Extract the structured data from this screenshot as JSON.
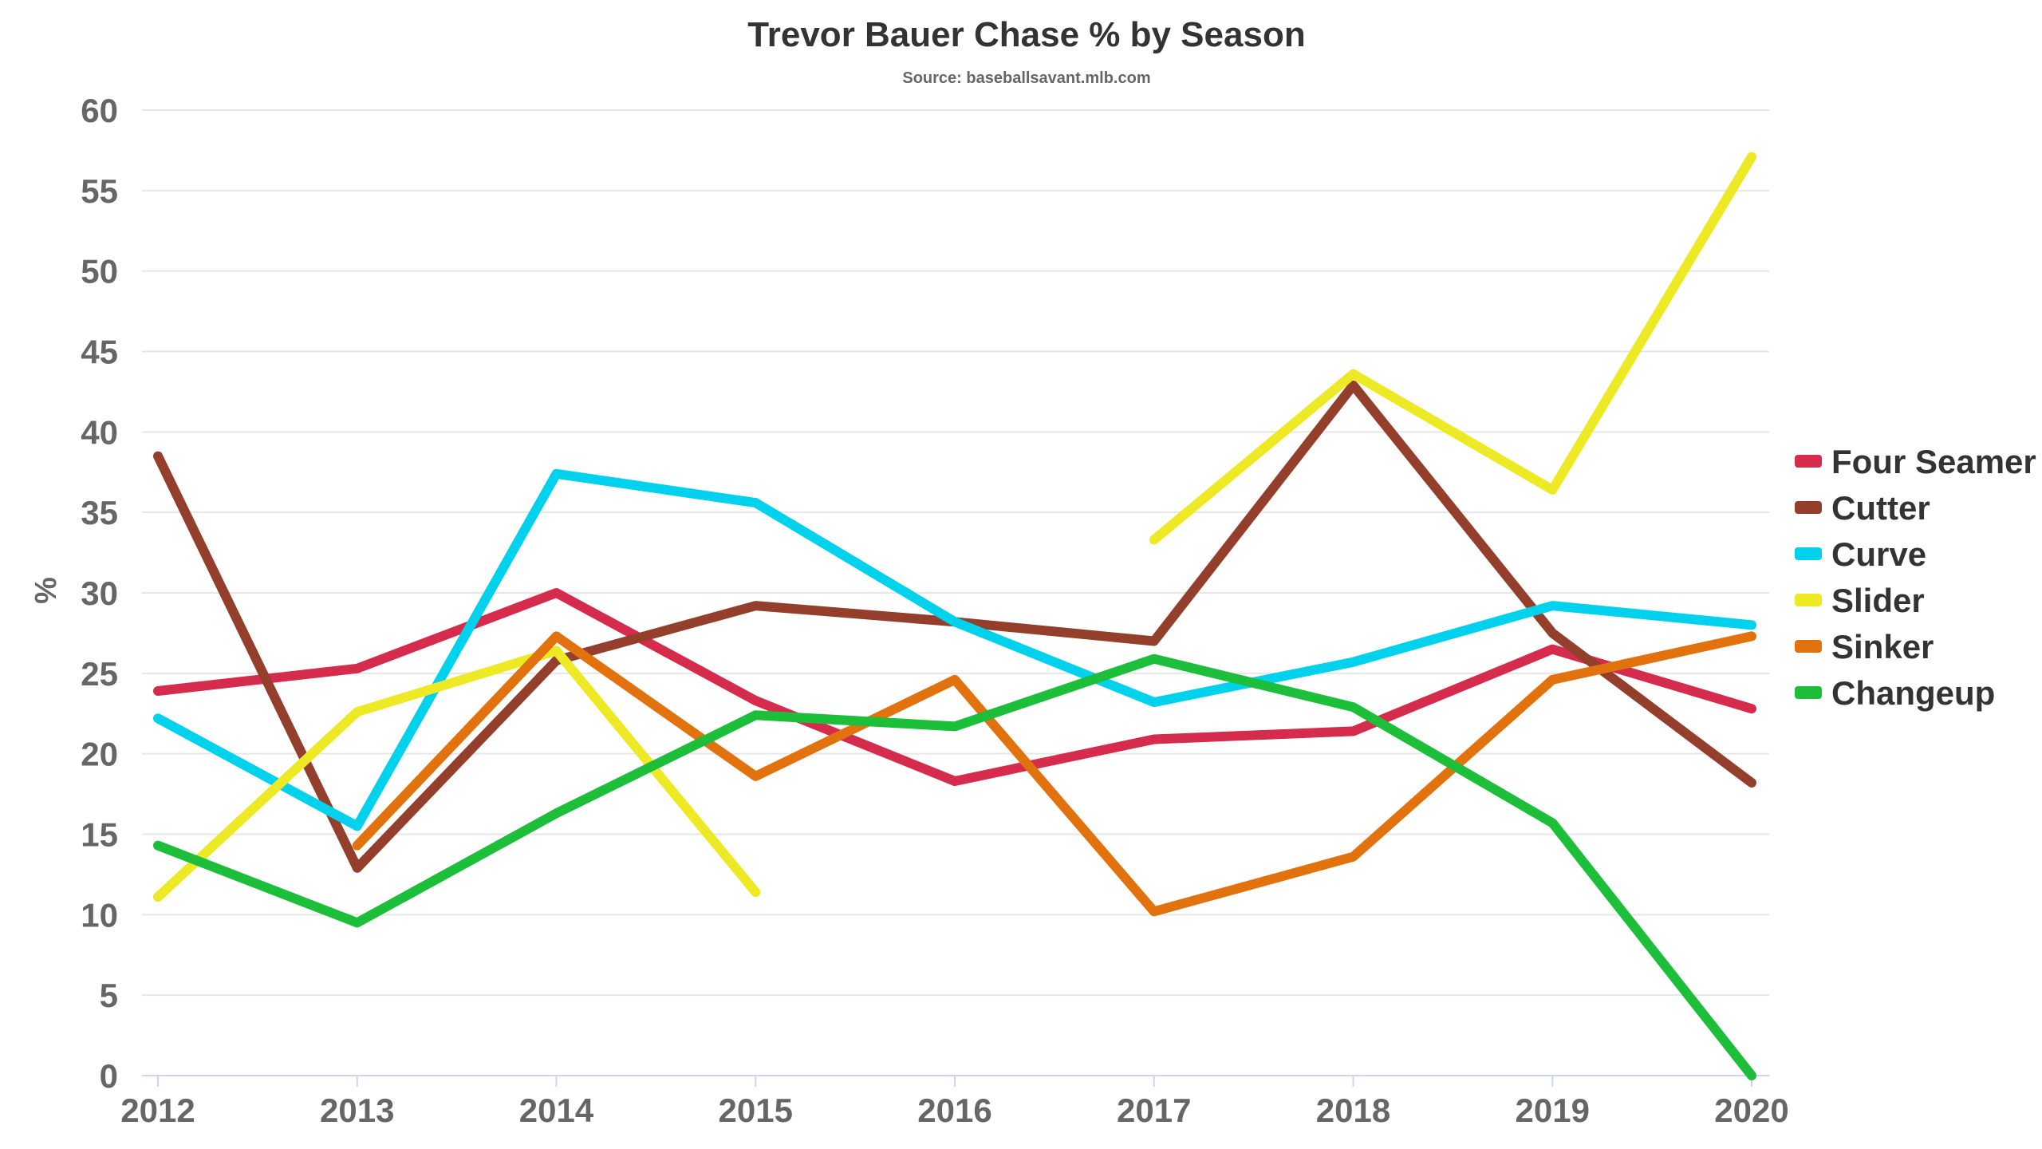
{
  "chart_data": {
    "type": "line",
    "title": "Trevor Bauer Chase % by Season",
    "subtitle": "Source: baseballsavant.mlb.com",
    "xlabel": "",
    "ylabel": "%",
    "x": [
      "2012",
      "2013",
      "2014",
      "2015",
      "2016",
      "2017",
      "2018",
      "2019",
      "2020"
    ],
    "ylim": [
      0,
      60
    ],
    "yticks": [
      0,
      5,
      10,
      15,
      20,
      25,
      30,
      35,
      40,
      45,
      50,
      55,
      60
    ],
    "grid": true,
    "legend_position": "right",
    "series": [
      {
        "name": "Four Seamer",
        "color": "#d52b4c",
        "values": [
          23.9,
          25.3,
          30.0,
          23.3,
          18.3,
          20.9,
          21.4,
          26.5,
          22.8
        ]
      },
      {
        "name": "Cutter",
        "color": "#933f2c",
        "values": [
          38.5,
          12.9,
          25.8,
          29.2,
          28.2,
          27.0,
          42.9,
          27.5,
          18.2
        ]
      },
      {
        "name": "Curve",
        "color": "#00d1ed",
        "values": [
          22.2,
          15.5,
          37.4,
          35.6,
          28.2,
          23.2,
          25.7,
          29.2,
          28.0
        ]
      },
      {
        "name": "Slider",
        "color": "#ede924",
        "values": [
          11.1,
          22.6,
          26.4,
          11.4,
          null,
          33.3,
          43.6,
          36.4,
          57.1
        ]
      },
      {
        "name": "Sinker",
        "color": "#e1720d",
        "values": [
          null,
          14.3,
          27.3,
          18.6,
          24.6,
          10.2,
          13.6,
          24.6,
          27.3
        ]
      },
      {
        "name": "Changeup",
        "color": "#1dbe3a",
        "values": [
          14.3,
          9.5,
          16.3,
          22.4,
          21.7,
          25.9,
          22.9,
          15.7,
          0.0
        ]
      }
    ]
  }
}
